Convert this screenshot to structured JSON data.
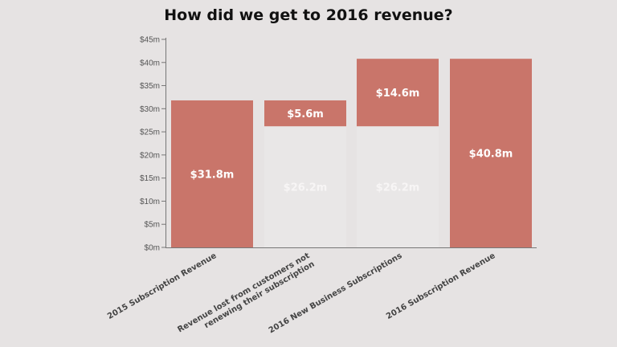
{
  "chart_data": {
    "type": "bar",
    "subtype": "waterfall",
    "title": "How did we get to 2016 revenue?",
    "xlabel": "",
    "ylabel": "",
    "ylim": [
      0,
      45
    ],
    "y_ticks": [
      "$0m",
      "$5m",
      "$10m",
      "$15m",
      "$20m",
      "$25m",
      "$30m",
      "$35m",
      "$40m",
      "$45m"
    ],
    "grid": false,
    "legend": "none",
    "colors": {
      "bar": "#c9756a",
      "base": "#e9e7e7",
      "background": "#e6e3e3"
    },
    "categories": [
      [
        "2015 Subscription Revenue"
      ],
      [
        "Revenue lost from customers not",
        "renewing their subscription"
      ],
      [
        "2016 New Business Subscriptions"
      ],
      [
        "2016 Subscription Revenue"
      ]
    ],
    "bars": [
      {
        "base": 0,
        "value": 31.8,
        "label": "$31.8m",
        "base_label": ""
      },
      {
        "base": 26.2,
        "value": 5.6,
        "label": "$5.6m",
        "base_label": "$26.2m"
      },
      {
        "base": 26.2,
        "value": 14.6,
        "label": "$14.6m",
        "base_label": "$26.2m"
      },
      {
        "base": 0,
        "value": 40.8,
        "label": "$40.8m",
        "base_label": ""
      }
    ]
  }
}
